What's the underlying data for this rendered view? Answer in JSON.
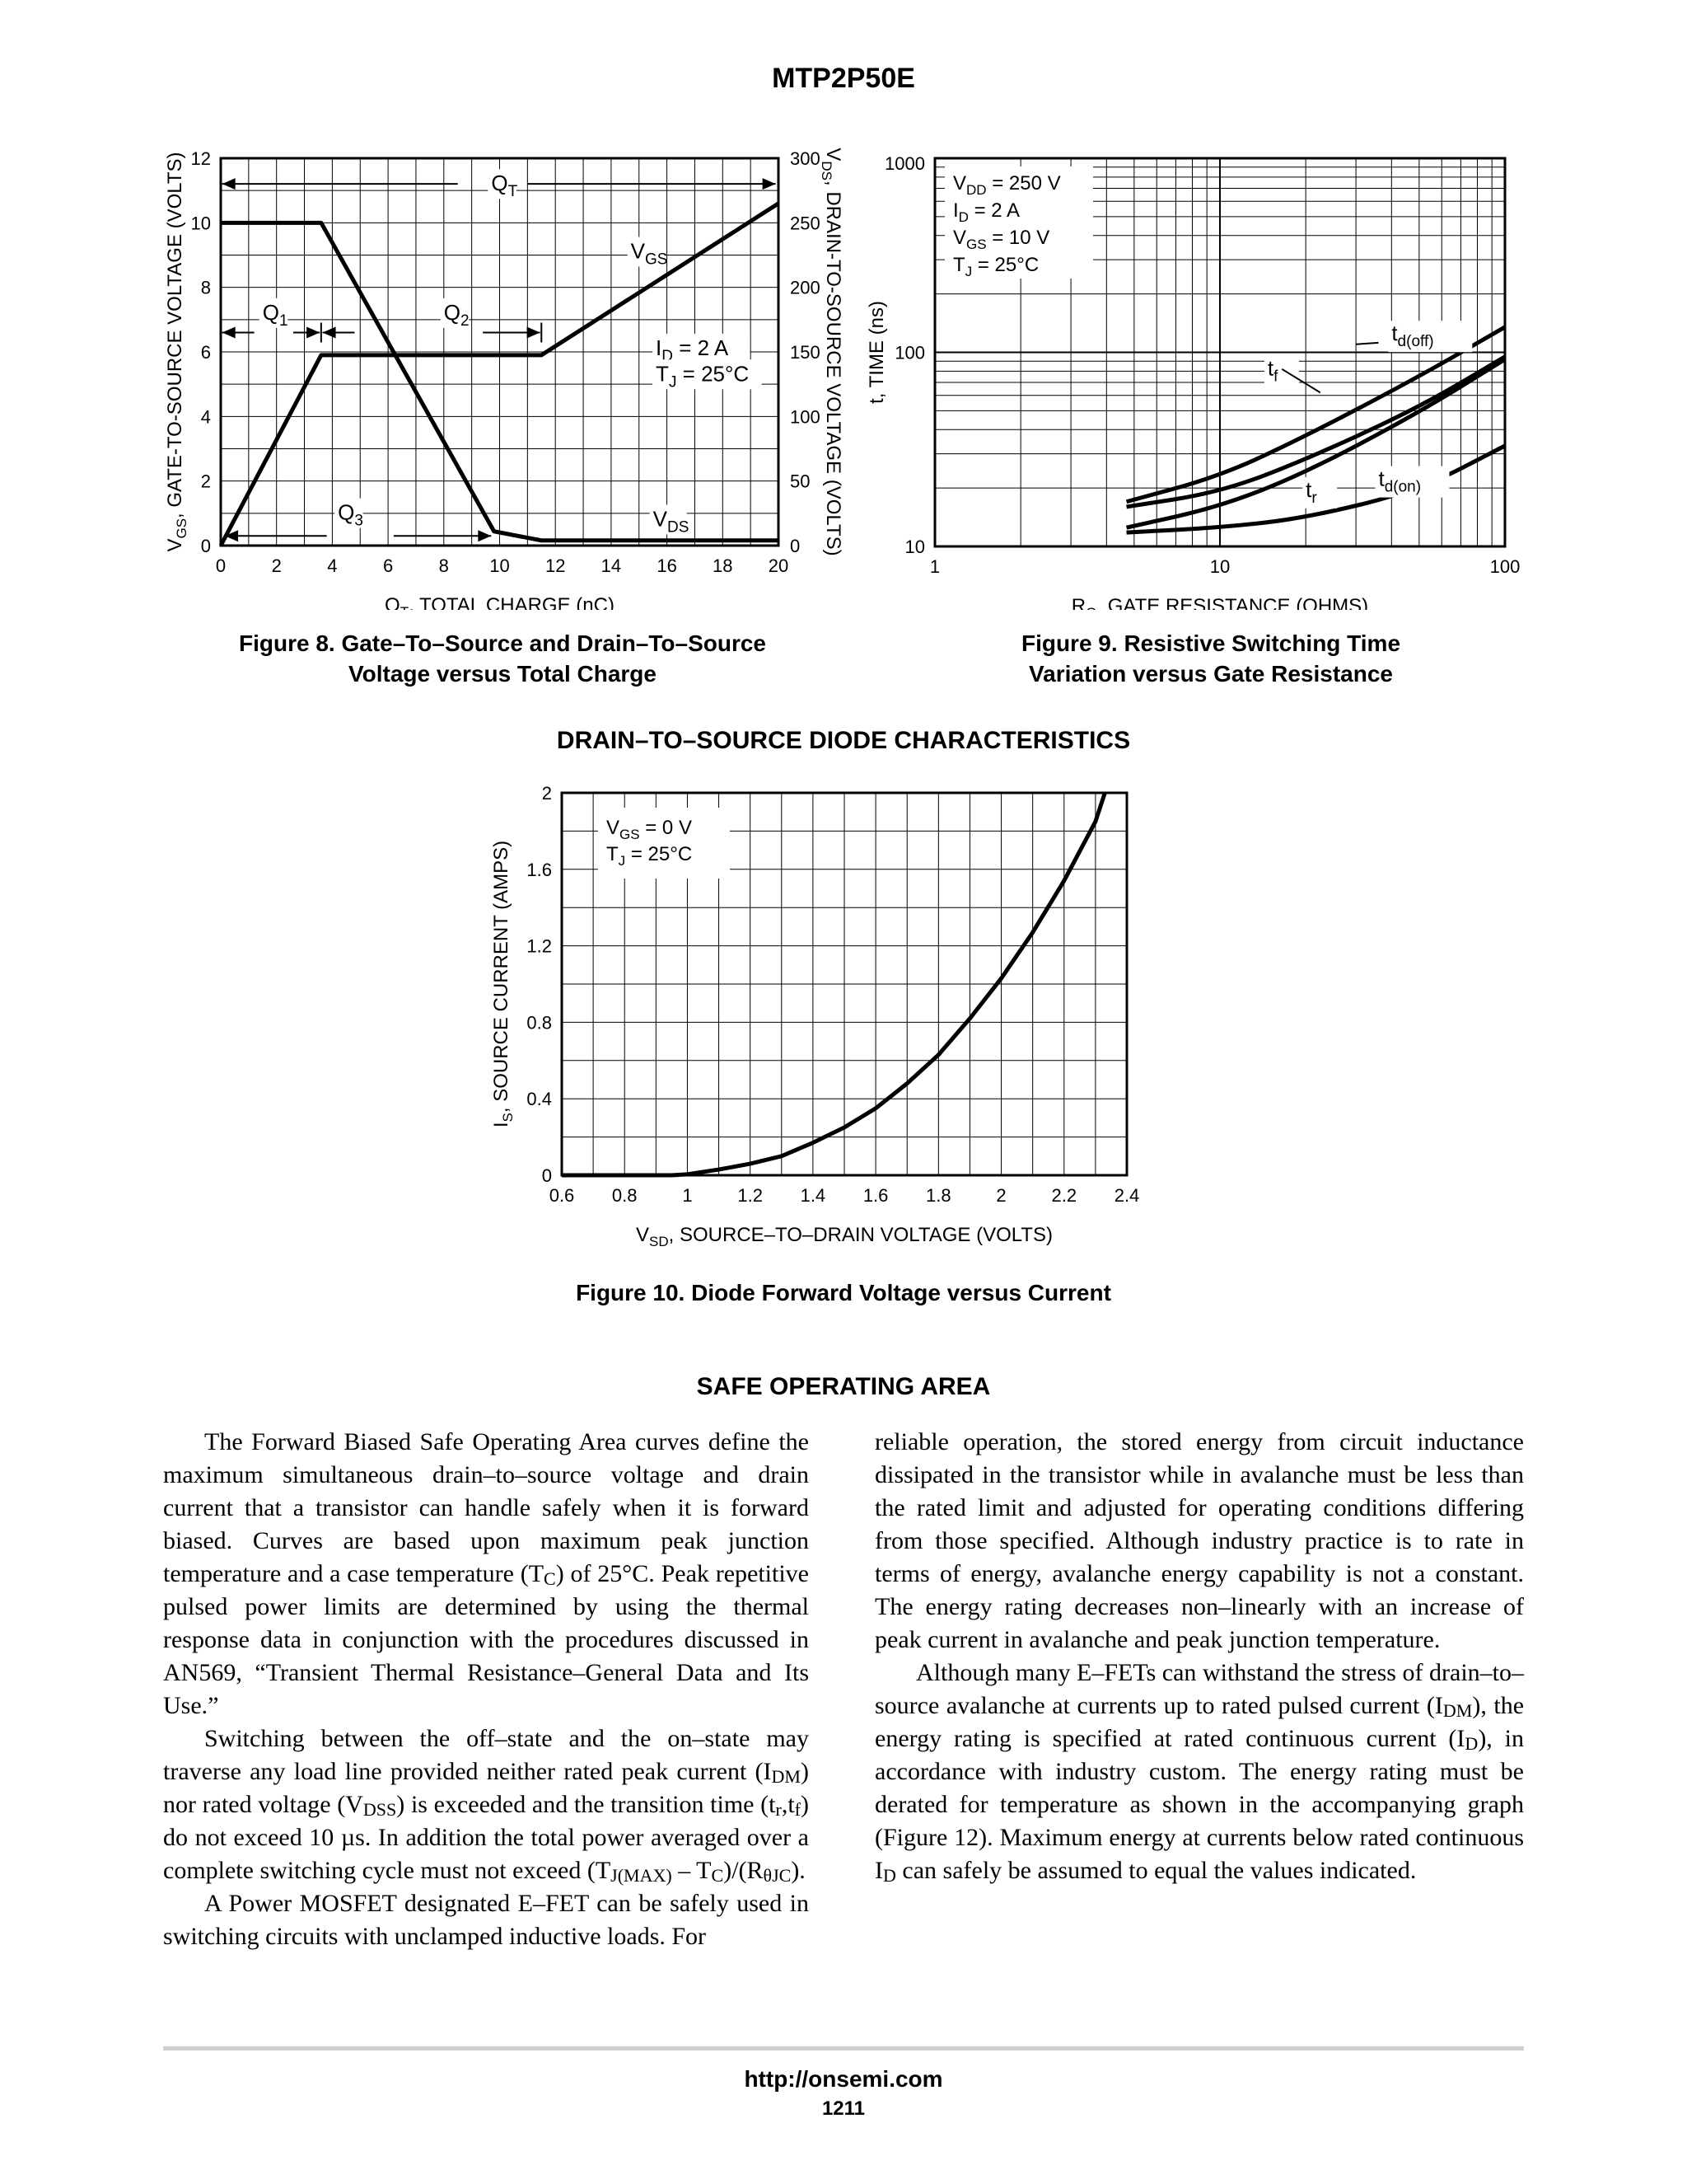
{
  "page": {
    "title": "MTP2P50E",
    "footer_url": "http://onsemi.com",
    "page_number": "1211"
  },
  "figure8": {
    "caption_line1": "Figure 8. Gate–To–Source and Drain–To–Source",
    "caption_line2": "Voltage versus Total Charge"
  },
  "figure9": {
    "caption_line1": "Figure 9.  Resistive Switching Time",
    "caption_line2": "Variation versus Gate Resistance"
  },
  "diode_section_title": "DRAIN–TO–SOURCE DIODE CHARACTERISTICS",
  "figure10": {
    "caption": "Figure 10. Diode Forward Voltage versus Current"
  },
  "soa": {
    "heading": "SAFE OPERATING AREA",
    "left_p1": "The Forward Biased Safe Operating Area curves define the maximum simultaneous drain–to–source voltage and drain current that a transistor can handle safely when it is forward biased. Curves are based upon maximum peak junction temperature and a case temperature (T",
    "left_p1_sub": "C",
    "left_p1_tail": ") of 25°C. Peak repetitive pulsed power limits are determined by using the thermal response data in conjunction with the procedures discussed in AN569, “Transient Thermal Resistance–General Data and Its Use.”",
    "left_p2_a": "Switching between the off–state and the on–state may traverse any load line provided neither rated peak current (I",
    "left_p2_sub1": "DM",
    "left_p2_b": ") nor rated voltage (V",
    "left_p2_sub2": "DSS",
    "left_p2_c": ") is exceeded and the transition time (t",
    "left_p2_sub3": "r",
    "left_p2_d": ",t",
    "left_p2_sub4": "f",
    "left_p2_e": ") do not exceed 10 µs. In addition the total power averaged over a complete switching cycle must not exceed (T",
    "left_p2_sub5": "J(MAX)",
    "left_p2_f": " – T",
    "left_p2_sub6": "C",
    "left_p2_g": ")/(R",
    "left_p2_sub7": "θJC",
    "left_p2_h": ").",
    "left_p3": "A Power MOSFET designated E–FET can be safely used in switching circuits with unclamped inductive loads. For",
    "right_p1": "reliable operation, the stored energy from circuit inductance dissipated in the transistor while in avalanche must be less than the rated limit and adjusted for operating conditions differing from those specified. Although industry practice is to rate in terms of energy, avalanche energy capability is not a constant. The energy rating decreases non–linearly with an increase of peak current in avalanche and peak junction temperature.",
    "right_p2_a": "Although many E–FETs can withstand the stress of drain–to–source avalanche at currents up to rated pulsed current (I",
    "right_p2_sub1": "DM",
    "right_p2_b": "), the energy rating is specified at rated continuous current (I",
    "right_p2_sub2": "D",
    "right_p2_c": "), in accordance with industry custom. The energy rating must be derated for temperature as shown in the accompanying graph (Figure 12). Maximum energy at currents below rated continuous I",
    "right_p2_sub3": "D",
    "right_p2_d": " can safely be assumed to equal the values indicated."
  },
  "chart_data": [
    {
      "id": "figure8",
      "type": "line",
      "xlabel": "Q",
      "xlabel_sub": "T",
      "xlabel_tail": ", TOTAL CHARGE (nC)",
      "ylabel": "V",
      "ylabel_sub": "GS",
      "ylabel_tail": ", GATE-TO-SOURCE VOLTAGE (VOLTS)",
      "y2label": "V",
      "y2label_sub": "DS",
      "y2label_tail": ", DRAIN-TO-SOURCE VOLTAGE (VOLTS)",
      "xlim": [
        0,
        20
      ],
      "ylim": [
        0,
        12
      ],
      "y2lim": [
        0,
        300
      ],
      "x_ticks": [
        "0",
        "2",
        "4",
        "6",
        "8",
        "10",
        "12",
        "14",
        "16",
        "18",
        "20"
      ],
      "x_tick_values": [
        0,
        2,
        4,
        6,
        8,
        10,
        12,
        14,
        16,
        18,
        20
      ],
      "y_ticks": [
        "0",
        "2",
        "4",
        "6",
        "8",
        "10",
        "12"
      ],
      "y_tick_values": [
        0,
        2,
        4,
        6,
        8,
        10,
        12
      ],
      "y2_ticks": [
        "0",
        "50",
        "100",
        "150",
        "200",
        "250",
        "300"
      ],
      "y2_tick_values": [
        0,
        50,
        100,
        150,
        200,
        250,
        300
      ],
      "grid": true,
      "series": [
        {
          "name": "VGS",
          "axis": "left",
          "x": [
            0,
            3.6,
            11.5,
            20
          ],
          "y": [
            0,
            5.9,
            5.9,
            10.6
          ]
        },
        {
          "name": "VDS",
          "axis": "right",
          "x": [
            0,
            3.6,
            9.8,
            11.5,
            20
          ],
          "y": [
            250,
            250,
            11,
            4,
            4
          ]
        }
      ],
      "labels": [
        {
          "text": "V",
          "sub": "GS",
          "x": 14.7,
          "y": 8.9
        },
        {
          "text": "V",
          "sub": "DS",
          "x": 15.5,
          "y": 0.6
        },
        {
          "text": "Q",
          "sub": "T",
          "x": 9.7,
          "y": 11.0
        },
        {
          "text": "Q",
          "sub": "1",
          "x": 1.5,
          "y": 7.0
        },
        {
          "text": "Q",
          "sub": "2",
          "x": 8.0,
          "y": 7.0
        },
        {
          "text": "Q",
          "sub": "3",
          "x": 4.2,
          "y": 0.8
        },
        {
          "text": "I",
          "sub": "D",
          "tail": " = 2 A",
          "x": 15.6,
          "y": 5.9
        },
        {
          "text": "T",
          "sub": "J",
          "tail": " = 25°C",
          "x": 15.6,
          "y": 5.1
        }
      ]
    },
    {
      "id": "figure9",
      "type": "line",
      "xscale": "log",
      "yscale": "log",
      "xlabel": "R",
      "xlabel_sub": "G",
      "xlabel_tail": ", GATE RESISTANCE (OHMS)",
      "ylabel": "t, TIME (ns)",
      "xlim": [
        1,
        100
      ],
      "ylim": [
        10,
        1000
      ],
      "x_ticks": [
        "1",
        "10",
        "100"
      ],
      "x_tick_values": [
        1,
        10,
        100
      ],
      "y_ticks": [
        "10",
        "100",
        "1000"
      ],
      "y_tick_values": [
        10,
        100,
        1000
      ],
      "grid": true,
      "series": [
        {
          "name": "td(off)",
          "x": [
            4.7,
            10,
            20,
            50,
            100
          ],
          "y": [
            17,
            23,
            37,
            75,
            135
          ]
        },
        {
          "name": "tf",
          "x": [
            4.7,
            10,
            20,
            50,
            100
          ],
          "y": [
            16,
            19,
            28,
            52,
            95
          ]
        },
        {
          "name": "tr",
          "x": [
            4.7,
            10,
            20,
            50,
            100
          ],
          "y": [
            12.5,
            16,
            24,
            49,
            92
          ]
        },
        {
          "name": "td(on)",
          "x": [
            4.7,
            10,
            20,
            50,
            100
          ],
          "y": [
            11.8,
            12.5,
            14,
            19.5,
            33
          ]
        }
      ],
      "labels": [
        {
          "text": "t",
          "sub": "d(off)",
          "x": 40,
          "y": 115
        },
        {
          "text": "t",
          "sub": "f",
          "x": 14.7,
          "y": 76
        },
        {
          "text": "t",
          "sub": "r",
          "x": 20,
          "y": 18
        },
        {
          "text": "t",
          "sub": "d(on)",
          "x": 36,
          "y": 20.5
        }
      ],
      "legend": [
        {
          "text": "V",
          "sub": "DD",
          "tail": " = 250 V"
        },
        {
          "text": "I",
          "sub": "D",
          "tail": " = 2 A"
        },
        {
          "text": "V",
          "sub": "GS",
          "tail": " = 10 V"
        },
        {
          "text": "T",
          "sub": "J",
          "tail": " = 25°C"
        }
      ],
      "legend_position": "top-left"
    },
    {
      "id": "figure10",
      "type": "line",
      "xlabel": "V",
      "xlabel_sub": "SD",
      "xlabel_tail": ", SOURCE–TO–DRAIN VOLTAGE (VOLTS)",
      "ylabel": "I",
      "ylabel_sub": "S",
      "ylabel_tail": ", SOURCE CURRENT (AMPS)",
      "xlim": [
        0.6,
        2.4
      ],
      "ylim": [
        0,
        2
      ],
      "x_ticks": [
        "0.6",
        "0.8",
        "1",
        "1.2",
        "1.4",
        "1.6",
        "1.8",
        "2",
        "2.2",
        "2.4"
      ],
      "x_tick_values": [
        0.6,
        0.8,
        1.0,
        1.2,
        1.4,
        1.6,
        1.8,
        2.0,
        2.2,
        2.4
      ],
      "y_ticks": [
        "0",
        "0.4",
        "0.8",
        "1.2",
        "1.6",
        "2"
      ],
      "y_tick_values": [
        0,
        0.4,
        0.8,
        1.2,
        1.6,
        2.0
      ],
      "grid": true,
      "series": [
        {
          "name": "IS",
          "x": [
            0.6,
            0.95,
            1.0,
            1.1,
            1.2,
            1.3,
            1.4,
            1.5,
            1.6,
            1.7,
            1.8,
            1.9,
            2.0,
            2.1,
            2.2,
            2.3,
            2.33
          ],
          "y": [
            0,
            0,
            0.005,
            0.03,
            0.06,
            0.1,
            0.17,
            0.25,
            0.35,
            0.48,
            0.63,
            0.82,
            1.03,
            1.27,
            1.54,
            1.85,
            2.0
          ]
        }
      ],
      "legend": [
        {
          "text": "V",
          "sub": "GS",
          "tail": " = 0 V"
        },
        {
          "text": "T",
          "sub": "J",
          "tail": " = 25°C"
        }
      ],
      "legend_position": "top-left"
    }
  ]
}
